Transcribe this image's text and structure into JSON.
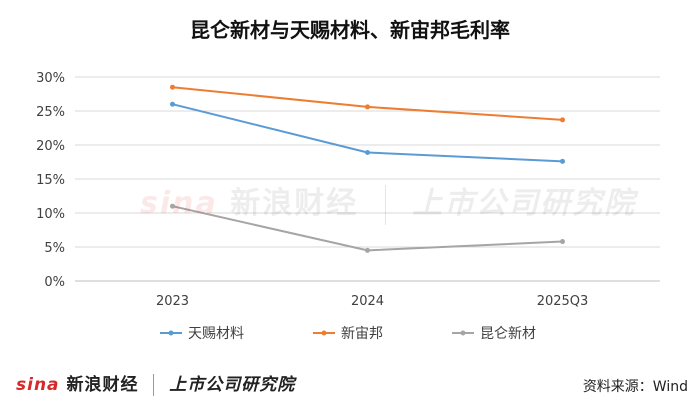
{
  "title": "昆仑新材与天赐材料、新宙邦毛利率",
  "watermark_brand": "sina",
  "watermark_text": "新浪财经",
  "watermark_text2": "上市公司研究院",
  "footer_brand_logo": "sina",
  "footer_brand_text": "新浪财经",
  "footer_brand_text2": "上市公司研究院",
  "source": "资料来源：Wind",
  "chart_data": {
    "type": "line",
    "categories": [
      "2023",
      "2024",
      "2025Q3"
    ],
    "series": [
      {
        "name": "天赐材料",
        "values": [
          26.0,
          18.9,
          17.6
        ],
        "color": "#5b9bd5"
      },
      {
        "name": "新宙邦",
        "values": [
          28.5,
          25.6,
          23.7
        ],
        "color": "#ed7d31"
      },
      {
        "name": "昆仑新材",
        "values": [
          11.0,
          4.5,
          5.8
        ],
        "color": "#a5a5a5"
      }
    ],
    "yticks": [
      "0%",
      "5%",
      "10%",
      "15%",
      "20%",
      "25%",
      "30%"
    ],
    "ylim": [
      0,
      30
    ],
    "grid": true,
    "legend_position": "bottom"
  }
}
